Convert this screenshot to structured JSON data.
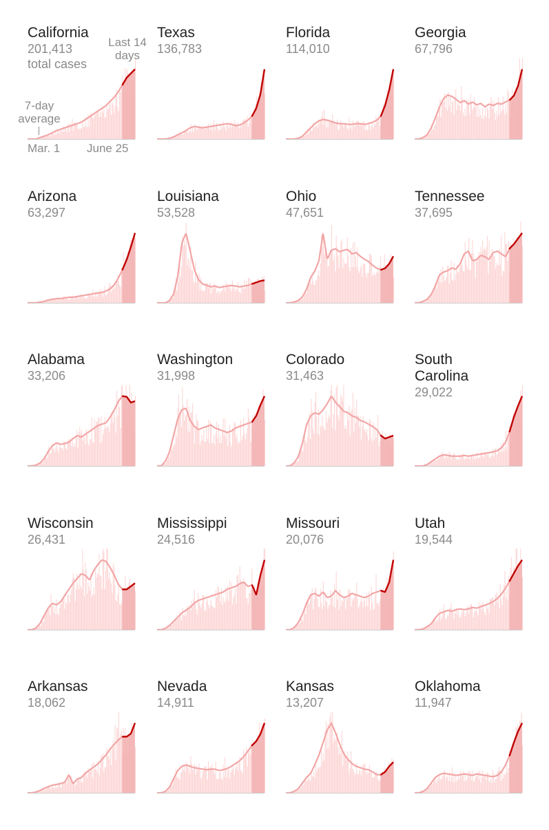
{
  "annotations": {
    "total_label": "total cases",
    "recent_label_line1": "Last 14",
    "recent_label_line2": "days",
    "avg_label_line1": "7-day",
    "avg_label_line2": "average",
    "start_date": "Mar. 1",
    "end_date": "June 25"
  },
  "colors": {
    "daily_bar": "#fdd5d5",
    "avg_line": "#f2a5a5",
    "recent_band": "#f3b3b3",
    "recent_line": "#c00000",
    "axis": "#cccccc"
  },
  "chart_data": {
    "type": "area",
    "x_range": [
      "Mar. 1",
      "June 25"
    ],
    "recent_window_days": 14,
    "y_scale": "per-state, normalized to each state's peak",
    "series": [
      {
        "state": "California",
        "total_cases": "201,413",
        "values": [
          0,
          0,
          0,
          2,
          4,
          6,
          9,
          12,
          14,
          16,
          18,
          20,
          22,
          24,
          28,
          32,
          36,
          40,
          44,
          48,
          54,
          60,
          68,
          78,
          88,
          94,
          100
        ]
      },
      {
        "state": "Texas",
        "total_cases": "136,783",
        "values": [
          0,
          0,
          0,
          1,
          3,
          6,
          9,
          12,
          16,
          18,
          17,
          16,
          17,
          18,
          19,
          20,
          21,
          22,
          21,
          19,
          20,
          23,
          27,
          33,
          44,
          64,
          100
        ]
      },
      {
        "state": "Florida",
        "total_cases": "114,010",
        "values": [
          0,
          0,
          0,
          1,
          4,
          10,
          16,
          22,
          26,
          28,
          27,
          25,
          23,
          22,
          22,
          21,
          21,
          22,
          22,
          21,
          22,
          24,
          27,
          33,
          48,
          70,
          100
        ]
      },
      {
        "state": "Georgia",
        "total_cases": "67,796",
        "values": [
          0,
          0,
          2,
          6,
          16,
          30,
          46,
          58,
          63,
          61,
          57,
          52,
          55,
          50,
          53,
          49,
          51,
          46,
          50,
          48,
          51,
          50,
          53,
          56,
          62,
          76,
          100
        ]
      },
      {
        "state": "Arizona",
        "total_cases": "63,297",
        "values": [
          0,
          0,
          0,
          1,
          2,
          4,
          5,
          6,
          6,
          7,
          8,
          8,
          9,
          10,
          11,
          12,
          13,
          14,
          15,
          17,
          20,
          26,
          36,
          48,
          62,
          80,
          100
        ]
      },
      {
        "state": "Louisiana",
        "total_cases": "53,528",
        "values": [
          0,
          0,
          0,
          3,
          12,
          36,
          82,
          96,
          72,
          46,
          32,
          26,
          24,
          22,
          23,
          21,
          22,
          23,
          24,
          23,
          22,
          23,
          24,
          26,
          28,
          30,
          31
        ]
      },
      {
        "state": "Ohio",
        "total_cases": "47,651",
        "values": [
          0,
          0,
          1,
          3,
          8,
          18,
          34,
          42,
          56,
          93,
          58,
          70,
          72,
          68,
          70,
          71,
          65,
          67,
          62,
          58,
          55,
          50,
          46,
          44,
          46,
          52,
          62
        ]
      },
      {
        "state": "Tennessee",
        "total_cases": "37,695",
        "values": [
          0,
          0,
          2,
          5,
          12,
          24,
          40,
          44,
          46,
          50,
          48,
          56,
          70,
          74,
          60,
          62,
          68,
          66,
          62,
          72,
          74,
          70,
          66,
          78,
          84,
          92,
          100
        ]
      },
      {
        "state": "Alabama",
        "total_cases": "33,206",
        "values": [
          0,
          0,
          1,
          4,
          10,
          20,
          28,
          32,
          30,
          31,
          33,
          38,
          42,
          40,
          44,
          48,
          52,
          56,
          58,
          60,
          68,
          78,
          90,
          97,
          96,
          88,
          90
        ]
      },
      {
        "state": "Washington",
        "total_cases": "31,998",
        "values": [
          0,
          0,
          6,
          18,
          40,
          62,
          74,
          76,
          60,
          52,
          48,
          50,
          52,
          54,
          50,
          48,
          46,
          44,
          46,
          50,
          52,
          54,
          56,
          58,
          66,
          80,
          92
        ]
      },
      {
        "state": "Colorado",
        "total_cases": "31,463",
        "values": [
          0,
          0,
          4,
          12,
          30,
          54,
          66,
          70,
          68,
          74,
          82,
          92,
          84,
          78,
          72,
          70,
          66,
          64,
          60,
          58,
          55,
          52,
          48,
          40,
          36,
          38,
          40
        ]
      },
      {
        "state": "South Carolina",
        "total_cases": "29,022",
        "values": [
          0,
          0,
          0,
          2,
          6,
          10,
          14,
          16,
          15,
          14,
          14,
          14,
          15,
          14,
          15,
          16,
          17,
          18,
          19,
          20,
          22,
          26,
          34,
          50,
          70,
          86,
          100
        ]
      },
      {
        "state": "Wisconsin",
        "total_cases": "26,431",
        "values": [
          0,
          0,
          2,
          8,
          18,
          28,
          34,
          32,
          36,
          44,
          52,
          60,
          66,
          72,
          70,
          64,
          76,
          84,
          90,
          88,
          80,
          70,
          58,
          52,
          52,
          56,
          60
        ]
      },
      {
        "state": "Mississippi",
        "total_cases": "24,516",
        "values": [
          0,
          0,
          2,
          6,
          12,
          18,
          24,
          28,
          32,
          38,
          42,
          44,
          46,
          48,
          50,
          52,
          54,
          58,
          60,
          62,
          66,
          68,
          62,
          64,
          50,
          78,
          100
        ]
      },
      {
        "state": "Missouri",
        "total_cases": "20,076",
        "values": [
          0,
          0,
          3,
          10,
          22,
          38,
          50,
          52,
          48,
          54,
          46,
          48,
          56,
          50,
          46,
          48,
          52,
          50,
          48,
          46,
          48,
          52,
          54,
          56,
          54,
          68,
          100
        ]
      },
      {
        "state": "Utah",
        "total_cases": "19,544",
        "values": [
          0,
          0,
          1,
          4,
          8,
          16,
          22,
          24,
          26,
          25,
          27,
          28,
          27,
          28,
          30,
          29,
          31,
          33,
          35,
          38,
          42,
          48,
          56,
          66,
          76,
          86,
          94
        ]
      },
      {
        "state": "Arkansas",
        "total_cases": "18,062",
        "values": [
          0,
          0,
          1,
          3,
          6,
          8,
          10,
          11,
          12,
          14,
          24,
          12,
          18,
          20,
          26,
          30,
          34,
          38,
          44,
          50,
          58,
          64,
          70,
          74,
          74,
          78,
          92
        ]
      },
      {
        "state": "Nevada",
        "total_cases": "14,911",
        "values": [
          0,
          0,
          2,
          8,
          20,
          32,
          38,
          40,
          38,
          36,
          35,
          34,
          33,
          34,
          34,
          32,
          33,
          35,
          38,
          42,
          46,
          52,
          60,
          68,
          74,
          84,
          100
        ]
      },
      {
        "state": "Kansas",
        "total_cases": "13,207",
        "values": [
          0,
          0,
          2,
          6,
          14,
          22,
          28,
          40,
          54,
          72,
          90,
          100,
          86,
          70,
          56,
          48,
          42,
          38,
          36,
          34,
          33,
          30,
          26,
          26,
          30,
          38,
          44
        ]
      },
      {
        "state": "Oklahoma",
        "total_cases": "11,947",
        "values": [
          0,
          0,
          2,
          6,
          14,
          22,
          26,
          28,
          27,
          26,
          25,
          26,
          27,
          26,
          25,
          27,
          26,
          25,
          24,
          23,
          25,
          30,
          40,
          54,
          72,
          88,
          100
        ]
      }
    ]
  }
}
